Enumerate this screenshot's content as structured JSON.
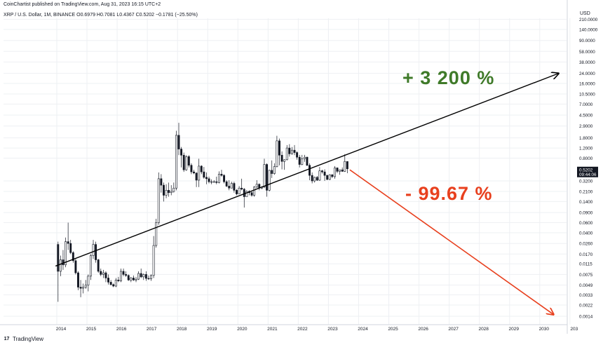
{
  "header": {
    "published": "CoinChartist published on TradingView.com, Aug 31, 2023 16:15 UTC+2",
    "symbol_line": "XRP / U.S. Dollar, 1M, BINANCE  O0.6979  H0.7081  L0.4367  C0.5202  −0.1781 (−25.50%)"
  },
  "price_scale": {
    "currency": "USD",
    "ticks": [
      "210.0000",
      "140.0000",
      "90.0000",
      "58.0000",
      "38.0000",
      "24.0000",
      "16.0000",
      "10.5000",
      "7.0000",
      "4.5000",
      "2.9000",
      "1.8000",
      "1.2000",
      "0.8000",
      "0.5202",
      "0.3200",
      "0.2100",
      "0.1400",
      "0.0900",
      "0.0600",
      "0.0400",
      "0.0260",
      "0.0170",
      "0.0115",
      "0.0075",
      "0.0049",
      "0.0033",
      "0.0022",
      "0.0014"
    ],
    "last_price": "0.5202",
    "countdown": "09:44:06"
  },
  "footer": {
    "brand": "TradingView",
    "logo_glyph": "17"
  },
  "annotations": {
    "upside": "+ 3 200 %",
    "downside": "- 99.67 %"
  },
  "colors": {
    "candle": "#131722",
    "trendline": "#000000",
    "arrow_down": "#e8401e",
    "text_up": "#3f7a29",
    "text_down": "#e8401e",
    "grid": "#eef0f3"
  },
  "chart_data": {
    "type": "candlestick",
    "log_scale": true,
    "grid": true,
    "interval": "1M",
    "x_labels": [
      "2014",
      "2015",
      "2016",
      "2017",
      "2018",
      "2019",
      "2020",
      "2021",
      "2022",
      "2023",
      "2024",
      "2025",
      "2026",
      "2027",
      "2028",
      "2029",
      "2030",
      "203"
    ],
    "ylim": [
      0.0012,
      260
    ],
    "candles": [
      {
        "t": "2014-01",
        "o": 0.025,
        "h": 0.028,
        "l": 0.0025,
        "c": 0.0085
      },
      {
        "t": "2014-02",
        "o": 0.0085,
        "h": 0.016,
        "l": 0.007,
        "c": 0.0135
      },
      {
        "t": "2014-03",
        "o": 0.0135,
        "h": 0.02,
        "l": 0.009,
        "c": 0.011
      },
      {
        "t": "2014-04",
        "o": 0.011,
        "h": 0.033,
        "l": 0.01,
        "c": 0.028
      },
      {
        "t": "2014-05",
        "o": 0.028,
        "h": 0.06,
        "l": 0.02,
        "c": 0.026
      },
      {
        "t": "2014-06",
        "o": 0.026,
        "h": 0.03,
        "l": 0.017,
        "c": 0.018
      },
      {
        "t": "2014-07",
        "o": 0.018,
        "h": 0.019,
        "l": 0.012,
        "c": 0.013
      },
      {
        "t": "2014-08",
        "o": 0.013,
        "h": 0.014,
        "l": 0.0075,
        "c": 0.008
      },
      {
        "t": "2014-09",
        "o": 0.008,
        "h": 0.0085,
        "l": 0.004,
        "c": 0.0045
      },
      {
        "t": "2014-10",
        "o": 0.0045,
        "h": 0.006,
        "l": 0.003,
        "c": 0.0043
      },
      {
        "t": "2014-11",
        "o": 0.0043,
        "h": 0.0052,
        "l": 0.0035,
        "c": 0.0045
      },
      {
        "t": "2014-12",
        "o": 0.0045,
        "h": 0.006,
        "l": 0.0042,
        "c": 0.0049
      },
      {
        "t": "2015-01",
        "o": 0.0049,
        "h": 0.0075,
        "l": 0.0038,
        "c": 0.007
      },
      {
        "t": "2015-02",
        "o": 0.007,
        "h": 0.017,
        "l": 0.006,
        "c": 0.016
      },
      {
        "t": "2015-03",
        "o": 0.016,
        "h": 0.03,
        "l": 0.014,
        "c": 0.025
      },
      {
        "t": "2015-04",
        "o": 0.025,
        "h": 0.028,
        "l": 0.012,
        "c": 0.0135
      },
      {
        "t": "2015-05",
        "o": 0.0135,
        "h": 0.014,
        "l": 0.008,
        "c": 0.0085
      },
      {
        "t": "2015-06",
        "o": 0.0085,
        "h": 0.0095,
        "l": 0.007,
        "c": 0.0075
      },
      {
        "t": "2015-07",
        "o": 0.0075,
        "h": 0.009,
        "l": 0.0065,
        "c": 0.008
      },
      {
        "t": "2015-08",
        "o": 0.008,
        "h": 0.0085,
        "l": 0.0055,
        "c": 0.0065
      },
      {
        "t": "2015-09",
        "o": 0.0065,
        "h": 0.0075,
        "l": 0.005,
        "c": 0.0055
      },
      {
        "t": "2015-10",
        "o": 0.0055,
        "h": 0.006,
        "l": 0.0048,
        "c": 0.005
      },
      {
        "t": "2015-11",
        "o": 0.005,
        "h": 0.0052,
        "l": 0.0045,
        "c": 0.0047
      },
      {
        "t": "2015-12",
        "o": 0.0047,
        "h": 0.0065,
        "l": 0.0045,
        "c": 0.006
      },
      {
        "t": "2016-01",
        "o": 0.006,
        "h": 0.0068,
        "l": 0.0055,
        "c": 0.0058
      },
      {
        "t": "2016-02",
        "o": 0.0058,
        "h": 0.0095,
        "l": 0.0055,
        "c": 0.0085
      },
      {
        "t": "2016-03",
        "o": 0.0085,
        "h": 0.0095,
        "l": 0.007,
        "c": 0.0075
      },
      {
        "t": "2016-04",
        "o": 0.0075,
        "h": 0.0085,
        "l": 0.0068,
        "c": 0.0072
      },
      {
        "t": "2016-05",
        "o": 0.0072,
        "h": 0.0075,
        "l": 0.0058,
        "c": 0.006
      },
      {
        "t": "2016-06",
        "o": 0.006,
        "h": 0.0068,
        "l": 0.0055,
        "c": 0.0065
      },
      {
        "t": "2016-07",
        "o": 0.0065,
        "h": 0.0072,
        "l": 0.0058,
        "c": 0.006
      },
      {
        "t": "2016-08",
        "o": 0.006,
        "h": 0.0068,
        "l": 0.0055,
        "c": 0.0062
      },
      {
        "t": "2016-09",
        "o": 0.0062,
        "h": 0.0085,
        "l": 0.006,
        "c": 0.0078
      },
      {
        "t": "2016-10",
        "o": 0.0078,
        "h": 0.0095,
        "l": 0.0065,
        "c": 0.0068
      },
      {
        "t": "2016-11",
        "o": 0.0068,
        "h": 0.0078,
        "l": 0.006,
        "c": 0.0075
      },
      {
        "t": "2016-12",
        "o": 0.0075,
        "h": 0.0085,
        "l": 0.0058,
        "c": 0.0064
      },
      {
        "t": "2017-01",
        "o": 0.0064,
        "h": 0.0072,
        "l": 0.006,
        "c": 0.0063
      },
      {
        "t": "2017-02",
        "o": 0.0063,
        "h": 0.0075,
        "l": 0.0058,
        "c": 0.0072
      },
      {
        "t": "2017-03",
        "o": 0.0072,
        "h": 0.035,
        "l": 0.0065,
        "c": 0.024
      },
      {
        "t": "2017-04",
        "o": 0.024,
        "h": 0.07,
        "l": 0.022,
        "c": 0.06
      },
      {
        "t": "2017-05",
        "o": 0.06,
        "h": 0.45,
        "l": 0.055,
        "c": 0.35
      },
      {
        "t": "2017-06",
        "o": 0.35,
        "h": 0.42,
        "l": 0.2,
        "c": 0.27
      },
      {
        "t": "2017-07",
        "o": 0.27,
        "h": 0.3,
        "l": 0.14,
        "c": 0.18
      },
      {
        "t": "2017-08",
        "o": 0.18,
        "h": 0.28,
        "l": 0.16,
        "c": 0.22
      },
      {
        "t": "2017-09",
        "o": 0.22,
        "h": 0.3,
        "l": 0.17,
        "c": 0.2
      },
      {
        "t": "2017-10",
        "o": 0.2,
        "h": 0.27,
        "l": 0.18,
        "c": 0.21
      },
      {
        "t": "2017-11",
        "o": 0.21,
        "h": 0.3,
        "l": 0.2,
        "c": 0.24
      },
      {
        "t": "2017-12",
        "o": 0.24,
        "h": 2.4,
        "l": 0.22,
        "c": 2.0
      },
      {
        "t": "2018-01",
        "o": 2.0,
        "h": 3.3,
        "l": 0.9,
        "c": 1.15
      },
      {
        "t": "2018-02",
        "o": 1.15,
        "h": 1.25,
        "l": 0.55,
        "c": 0.9
      },
      {
        "t": "2018-03",
        "o": 0.9,
        "h": 1.0,
        "l": 0.46,
        "c": 0.5
      },
      {
        "t": "2018-04",
        "o": 0.5,
        "h": 0.9,
        "l": 0.48,
        "c": 0.85
      },
      {
        "t": "2018-05",
        "o": 0.85,
        "h": 0.9,
        "l": 0.55,
        "c": 0.6
      },
      {
        "t": "2018-06",
        "o": 0.6,
        "h": 0.65,
        "l": 0.42,
        "c": 0.46
      },
      {
        "t": "2018-07",
        "o": 0.46,
        "h": 0.5,
        "l": 0.42,
        "c": 0.44
      },
      {
        "t": "2018-08",
        "o": 0.44,
        "h": 0.45,
        "l": 0.25,
        "c": 0.33
      },
      {
        "t": "2018-09",
        "o": 0.33,
        "h": 0.78,
        "l": 0.25,
        "c": 0.58
      },
      {
        "t": "2018-10",
        "o": 0.58,
        "h": 0.6,
        "l": 0.42,
        "c": 0.46
      },
      {
        "t": "2018-11",
        "o": 0.46,
        "h": 0.56,
        "l": 0.35,
        "c": 0.37
      },
      {
        "t": "2018-12",
        "o": 0.37,
        "h": 0.45,
        "l": 0.28,
        "c": 0.35
      },
      {
        "t": "2019-01",
        "o": 0.35,
        "h": 0.38,
        "l": 0.29,
        "c": 0.31
      },
      {
        "t": "2019-02",
        "o": 0.31,
        "h": 0.34,
        "l": 0.28,
        "c": 0.31
      },
      {
        "t": "2019-03",
        "o": 0.31,
        "h": 0.33,
        "l": 0.3,
        "c": 0.31
      },
      {
        "t": "2019-04",
        "o": 0.31,
        "h": 0.38,
        "l": 0.28,
        "c": 0.3
      },
      {
        "t": "2019-05",
        "o": 0.3,
        "h": 0.47,
        "l": 0.29,
        "c": 0.42
      },
      {
        "t": "2019-06",
        "o": 0.42,
        "h": 0.5,
        "l": 0.38,
        "c": 0.4
      },
      {
        "t": "2019-07",
        "o": 0.4,
        "h": 0.42,
        "l": 0.29,
        "c": 0.31
      },
      {
        "t": "2019-08",
        "o": 0.31,
        "h": 0.33,
        "l": 0.25,
        "c": 0.26
      },
      {
        "t": "2019-09",
        "o": 0.26,
        "h": 0.33,
        "l": 0.22,
        "c": 0.24
      },
      {
        "t": "2019-10",
        "o": 0.24,
        "h": 0.31,
        "l": 0.24,
        "c": 0.29
      },
      {
        "t": "2019-11",
        "o": 0.29,
        "h": 0.31,
        "l": 0.2,
        "c": 0.22
      },
      {
        "t": "2019-12",
        "o": 0.22,
        "h": 0.23,
        "l": 0.18,
        "c": 0.19
      },
      {
        "t": "2020-01",
        "o": 0.19,
        "h": 0.26,
        "l": 0.19,
        "c": 0.24
      },
      {
        "t": "2020-02",
        "o": 0.24,
        "h": 0.35,
        "l": 0.22,
        "c": 0.23
      },
      {
        "t": "2020-03",
        "o": 0.23,
        "h": 0.24,
        "l": 0.11,
        "c": 0.17
      },
      {
        "t": "2020-04",
        "o": 0.17,
        "h": 0.22,
        "l": 0.17,
        "c": 0.21
      },
      {
        "t": "2020-05",
        "o": 0.21,
        "h": 0.22,
        "l": 0.18,
        "c": 0.2
      },
      {
        "t": "2020-06",
        "o": 0.2,
        "h": 0.21,
        "l": 0.17,
        "c": 0.18
      },
      {
        "t": "2020-07",
        "o": 0.18,
        "h": 0.26,
        "l": 0.17,
        "c": 0.25
      },
      {
        "t": "2020-08",
        "o": 0.25,
        "h": 0.33,
        "l": 0.24,
        "c": 0.28
      },
      {
        "t": "2020-09",
        "o": 0.28,
        "h": 0.29,
        "l": 0.22,
        "c": 0.24
      },
      {
        "t": "2020-10",
        "o": 0.24,
        "h": 0.26,
        "l": 0.23,
        "c": 0.25
      },
      {
        "t": "2020-11",
        "o": 0.25,
        "h": 0.78,
        "l": 0.24,
        "c": 0.62
      },
      {
        "t": "2020-12",
        "o": 0.62,
        "h": 0.65,
        "l": 0.17,
        "c": 0.22
      },
      {
        "t": "2021-01",
        "o": 0.22,
        "h": 0.5,
        "l": 0.21,
        "c": 0.49
      },
      {
        "t": "2021-02",
        "o": 0.49,
        "h": 0.73,
        "l": 0.36,
        "c": 0.43
      },
      {
        "t": "2021-03",
        "o": 0.43,
        "h": 0.65,
        "l": 0.41,
        "c": 0.57
      },
      {
        "t": "2021-04",
        "o": 0.57,
        "h": 1.96,
        "l": 0.55,
        "c": 1.6
      },
      {
        "t": "2021-05",
        "o": 1.6,
        "h": 1.75,
        "l": 0.6,
        "c": 0.9
      },
      {
        "t": "2021-06",
        "o": 0.9,
        "h": 1.05,
        "l": 0.51,
        "c": 0.7
      },
      {
        "t": "2021-07",
        "o": 0.7,
        "h": 0.76,
        "l": 0.5,
        "c": 0.75
      },
      {
        "t": "2021-08",
        "o": 0.75,
        "h": 1.35,
        "l": 0.73,
        "c": 1.2
      },
      {
        "t": "2021-09",
        "o": 1.2,
        "h": 1.4,
        "l": 0.85,
        "c": 0.95
      },
      {
        "t": "2021-10",
        "o": 0.95,
        "h": 1.25,
        "l": 0.92,
        "c": 1.1
      },
      {
        "t": "2021-11",
        "o": 1.1,
        "h": 1.35,
        "l": 0.9,
        "c": 1.0
      },
      {
        "t": "2021-12",
        "o": 1.0,
        "h": 1.05,
        "l": 0.75,
        "c": 0.83
      },
      {
        "t": "2022-01",
        "o": 0.83,
        "h": 0.91,
        "l": 0.55,
        "c": 0.62
      },
      {
        "t": "2022-02",
        "o": 0.62,
        "h": 0.91,
        "l": 0.6,
        "c": 0.78
      },
      {
        "t": "2022-03",
        "o": 0.78,
        "h": 0.91,
        "l": 0.69,
        "c": 0.83
      },
      {
        "t": "2022-04",
        "o": 0.83,
        "h": 0.85,
        "l": 0.58,
        "c": 0.6
      },
      {
        "t": "2022-05",
        "o": 0.6,
        "h": 0.65,
        "l": 0.33,
        "c": 0.4
      },
      {
        "t": "2022-06",
        "o": 0.4,
        "h": 0.45,
        "l": 0.29,
        "c": 0.32
      },
      {
        "t": "2022-07",
        "o": 0.32,
        "h": 0.38,
        "l": 0.3,
        "c": 0.37
      },
      {
        "t": "2022-08",
        "o": 0.37,
        "h": 0.39,
        "l": 0.32,
        "c": 0.33
      },
      {
        "t": "2022-09",
        "o": 0.33,
        "h": 0.56,
        "l": 0.32,
        "c": 0.48
      },
      {
        "t": "2022-10",
        "o": 0.48,
        "h": 0.5,
        "l": 0.43,
        "c": 0.46
      },
      {
        "t": "2022-11",
        "o": 0.46,
        "h": 0.51,
        "l": 0.32,
        "c": 0.4
      },
      {
        "t": "2022-12",
        "o": 0.4,
        "h": 0.41,
        "l": 0.33,
        "c": 0.34
      },
      {
        "t": "2023-01",
        "o": 0.34,
        "h": 0.42,
        "l": 0.33,
        "c": 0.41
      },
      {
        "t": "2023-02",
        "o": 0.41,
        "h": 0.42,
        "l": 0.36,
        "c": 0.38
      },
      {
        "t": "2023-03",
        "o": 0.38,
        "h": 0.58,
        "l": 0.35,
        "c": 0.54
      },
      {
        "t": "2023-04",
        "o": 0.54,
        "h": 0.55,
        "l": 0.44,
        "c": 0.47
      },
      {
        "t": "2023-05",
        "o": 0.47,
        "h": 0.5,
        "l": 0.41,
        "c": 0.5
      },
      {
        "t": "2023-06",
        "o": 0.5,
        "h": 0.55,
        "l": 0.46,
        "c": 0.47
      },
      {
        "t": "2023-07",
        "o": 0.47,
        "h": 0.94,
        "l": 0.46,
        "c": 0.7
      },
      {
        "t": "2023-08",
        "o": 0.6979,
        "h": 0.7081,
        "l": 0.4367,
        "c": 0.5202
      }
    ],
    "trendline": {
      "from": {
        "t": "2013-12",
        "price": 0.0105
      },
      "to": {
        "t": "2030-08",
        "price": 24
      }
    },
    "projection_arrow": {
      "from": {
        "t": "2023-09",
        "price": 0.5
      },
      "to": {
        "t": "2030-06",
        "price": 0.0015
      }
    }
  }
}
